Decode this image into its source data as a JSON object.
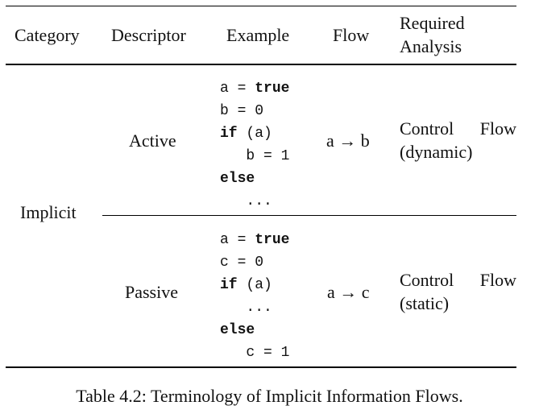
{
  "table": {
    "headers": {
      "category": "Category",
      "descriptor": "Descriptor",
      "example": "Example",
      "flow": "Flow",
      "analysis_line1": "Required",
      "analysis_line2": "Analysis"
    },
    "category": "Implicit",
    "rows": [
      {
        "descriptor": "Active",
        "code": [
          [
            {
              "t": "a = ",
              "kw": false
            },
            {
              "t": "true",
              "kw": true
            }
          ],
          [
            {
              "t": "b = 0",
              "kw": false
            }
          ],
          [
            {
              "t": "if",
              "kw": true
            },
            {
              "t": " (a)",
              "kw": false
            }
          ],
          [
            {
              "t": "   b = 1",
              "kw": false
            }
          ],
          [
            {
              "t": "else",
              "kw": true
            }
          ],
          [
            {
              "t": "   ...",
              "kw": false
            }
          ]
        ],
        "flow": "a → b",
        "analysis_line1": "Control  Flow",
        "analysis_line2": "(dynamic)"
      },
      {
        "descriptor": "Passive",
        "code": [
          [
            {
              "t": "a = ",
              "kw": false
            },
            {
              "t": "true",
              "kw": true
            }
          ],
          [
            {
              "t": "c = 0",
              "kw": false
            }
          ],
          [
            {
              "t": "if",
              "kw": true
            },
            {
              "t": " (a)",
              "kw": false
            }
          ],
          [
            {
              "t": "   ...",
              "kw": false
            }
          ],
          [
            {
              "t": "else",
              "kw": true
            }
          ],
          [
            {
              "t": "   c = 1",
              "kw": false
            }
          ]
        ],
        "flow": "a → c",
        "analysis_line1": "Control  Flow",
        "analysis_line2": "(static)"
      }
    ]
  },
  "caption": "Table 4.2: Terminology of Implicit Information Flows."
}
